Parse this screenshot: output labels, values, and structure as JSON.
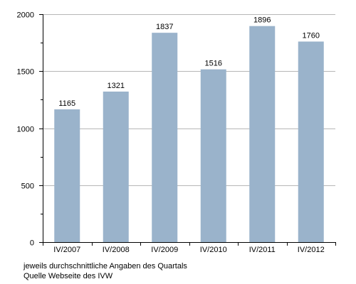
{
  "chart_data": {
    "type": "bar",
    "categories": [
      "IV/2007",
      "IV/2008",
      "IV/2009",
      "IV/2010",
      "IV/2011",
      "IV/2012"
    ],
    "values": [
      1165,
      1321,
      1837,
      1516,
      1896,
      1760
    ],
    "data_labels": [
      "1165",
      "1321",
      "1837",
      "1516",
      "1896",
      "1760"
    ],
    "ylim": [
      0,
      2000
    ],
    "yticks": [
      0,
      500,
      1000,
      1500,
      2000
    ],
    "ytick_labels": [
      "0",
      "500",
      "1000",
      "1500",
      "2000"
    ],
    "grid": true,
    "bar_color": "#9ab3cb",
    "grid_color": "#b7b7b7"
  },
  "notes": {
    "line1": "jeweils durchschnittliche Angaben des Quartals",
    "line2": "Quelle Webseite des IVW"
  }
}
